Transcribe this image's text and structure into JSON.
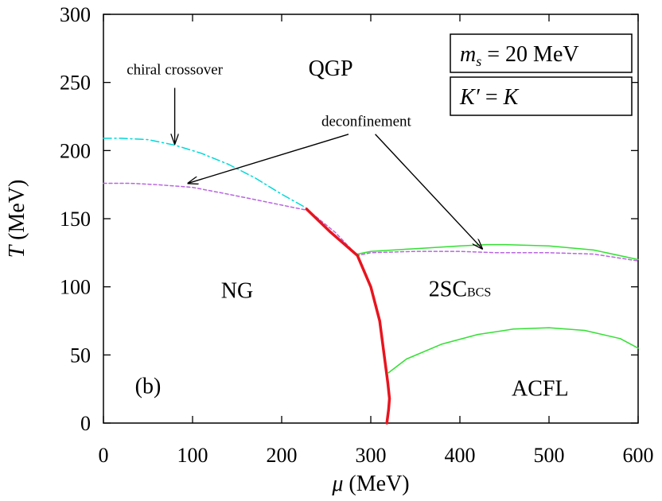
{
  "chart_data": {
    "type": "line",
    "panel_label": "(b)",
    "xlabel_symbol": "μ",
    "xlabel_unit": "(MeV)",
    "ylabel_symbol": "T",
    "ylabel_unit": "(MeV)",
    "xlim": [
      0,
      600
    ],
    "ylim": [
      0,
      300
    ],
    "x_ticks": [
      0,
      100,
      200,
      300,
      400,
      500,
      600
    ],
    "y_ticks": [
      0,
      50,
      100,
      150,
      200,
      250,
      300
    ],
    "grid": false,
    "parameter_box": [
      {
        "symbol": "m",
        "sub": "s",
        "rest": " = 20 MeV"
      },
      {
        "symbol": "K′",
        "sub": "",
        "rest": " = K"
      }
    ],
    "regions": [
      {
        "label": "QGP",
        "sub": "",
        "x": 255,
        "y": 255
      },
      {
        "label": "NG",
        "sub": "",
        "x": 150,
        "y": 92
      },
      {
        "label": "2SC",
        "sub": "BCS",
        "x": 400,
        "y": 93
      },
      {
        "label": "ACFL",
        "sub": "",
        "x": 490,
        "y": 20
      },
      {
        "label": "(b)",
        "sub": "",
        "x": 50,
        "y": 22
      }
    ],
    "annotations": [
      {
        "text": "chiral crossover",
        "x": 80,
        "y": 256,
        "arrows": [
          {
            "from": [
              80,
              246
            ],
            "to": [
              80,
              205
            ]
          }
        ]
      },
      {
        "text": "deconfinement",
        "x": 295,
        "y": 218,
        "arrows": [
          {
            "from": [
              275,
              212
            ],
            "to": [
              95,
              176
            ]
          },
          {
            "from": [
              305,
              212
            ],
            "to": [
              425,
              128
            ]
          }
        ]
      }
    ],
    "series": [
      {
        "color": "#00d8d8",
        "dash": "10,4,2,4",
        "width": 1.5,
        "x": [
          0,
          20,
          50,
          80,
          110,
          140,
          170,
          200,
          230
        ],
        "y": [
          209,
          209,
          208,
          204,
          198,
          190,
          180,
          168,
          157
        ]
      },
      {
        "color": "#b866e0",
        "dash": "4,3",
        "width": 1.5,
        "x": [
          0,
          30,
          60,
          100,
          140,
          170,
          200,
          230,
          260,
          285,
          300,
          350,
          400,
          440,
          500,
          550,
          600
        ],
        "y": [
          176,
          176,
          175,
          173,
          168,
          164,
          160,
          156,
          140,
          123,
          125,
          126,
          126,
          125,
          125,
          124,
          119
        ]
      },
      {
        "color": "#33e033",
        "dash": "",
        "width": 1.5,
        "x": [
          285,
          300,
          350,
          400,
          430,
          450,
          500,
          550,
          600
        ],
        "y": [
          124,
          126,
          128,
          130,
          131,
          131,
          130,
          127,
          120
        ]
      },
      {
        "color": "#33e033",
        "dash": "",
        "width": 1.5,
        "x": [
          320,
          340,
          380,
          420,
          460,
          500,
          540,
          580,
          600
        ],
        "y": [
          37,
          47,
          58,
          65,
          69,
          70,
          68,
          62,
          55
        ]
      },
      {
        "color": "#e8141e",
        "dash": "",
        "width": 3.5,
        "x": [
          228,
          255,
          285,
          300,
          310,
          315,
          319,
          321,
          320,
          318
        ],
        "y": [
          157,
          140,
          123,
          100,
          75,
          50,
          30,
          18,
          10,
          0
        ]
      }
    ]
  }
}
